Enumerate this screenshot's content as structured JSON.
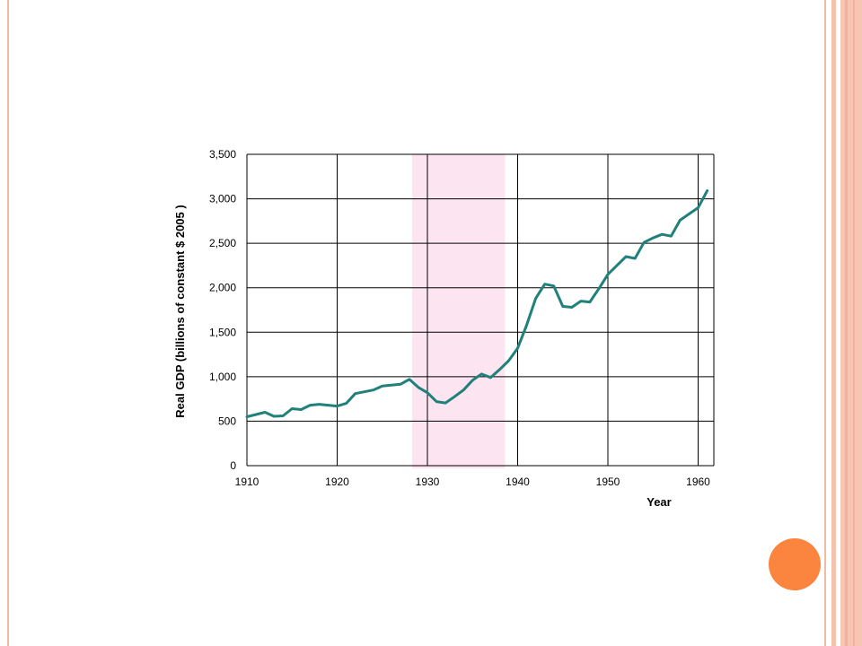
{
  "chart_data": {
    "type": "line",
    "title": "",
    "xlabel": "Year",
    "ylabel": "Real GDP (billions of constant $ 2005 )",
    "xlim": [
      1910,
      1962
    ],
    "ylim": [
      0,
      3500
    ],
    "x_ticks": [
      "1910",
      "1920",
      "1930",
      "1940",
      "1950",
      "1960"
    ],
    "y_ticks": [
      "0",
      "500",
      "1,000",
      "1,500",
      "2,000",
      "2,500",
      "3,000",
      "3,500"
    ],
    "grid": true,
    "shaded_period": [
      1928.3,
      1938.6
    ],
    "shaded_color": "#fce4f1",
    "line_color": "#20807a",
    "series": [
      {
        "x": [
          1910,
          1911,
          1912,
          1913,
          1914,
          1915,
          1916,
          1917,
          1918,
          1919,
          1920,
          1921,
          1922,
          1923,
          1924,
          1925,
          1926,
          1927,
          1928,
          1929,
          1930,
          1931,
          1932,
          1933,
          1934,
          1935,
          1936,
          1937,
          1938,
          1939,
          1940,
          1941,
          1942,
          1943,
          1944,
          1945,
          1946,
          1947,
          1948,
          1949,
          1950,
          1951,
          1952,
          1953,
          1954,
          1955,
          1956,
          1957,
          1958,
          1959,
          1960,
          1961
        ],
        "y": [
          550,
          575,
          600,
          555,
          560,
          640,
          630,
          680,
          690,
          680,
          670,
          700,
          810,
          830,
          850,
          895,
          905,
          915,
          970,
          880,
          820,
          720,
          705,
          775,
          850,
          960,
          1030,
          990,
          1080,
          1180,
          1320,
          1580,
          1880,
          2040,
          2020,
          1790,
          1780,
          1850,
          1840,
          1990,
          2150,
          2250,
          2350,
          2330,
          2510,
          2560,
          2600,
          2580,
          2760,
          2830,
          2900,
          3090
        ]
      }
    ]
  },
  "colors": {
    "frame": "#f4b9a2",
    "accent_dot": "#fb843f"
  }
}
